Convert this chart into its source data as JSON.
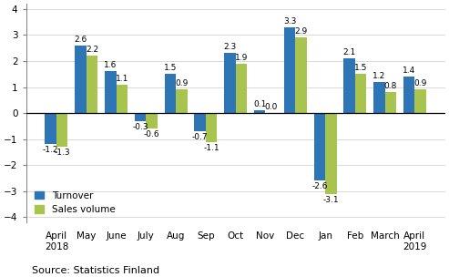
{
  "categories": [
    "April\n2018",
    "May",
    "June",
    "July",
    "Aug",
    "Sep",
    "Oct",
    "Nov",
    "Dec",
    "Jan",
    "Feb",
    "March",
    "April\n2019"
  ],
  "turnover": [
    -1.2,
    2.6,
    1.6,
    -0.3,
    1.5,
    -0.7,
    2.3,
    0.1,
    3.3,
    -2.6,
    2.1,
    1.2,
    1.4
  ],
  "sales_volume": [
    -1.3,
    2.2,
    1.1,
    -0.6,
    0.9,
    -1.1,
    1.9,
    0.0,
    2.9,
    -3.1,
    1.5,
    0.8,
    0.9
  ],
  "turnover_color": "#2e75b6",
  "sales_volume_color": "#a9c34f",
  "ylim": [
    -4.2,
    4.2
  ],
  "yticks": [
    -4,
    -3,
    -2,
    -1,
    0,
    1,
    2,
    3,
    4
  ],
  "source_text": "Source: Statistics Finland",
  "legend_turnover": "Turnover",
  "legend_sales": "Sales volume",
  "bar_width": 0.38,
  "label_fontsize": 6.5,
  "axis_fontsize": 7.5,
  "legend_fontsize": 7.5,
  "source_fontsize": 8
}
